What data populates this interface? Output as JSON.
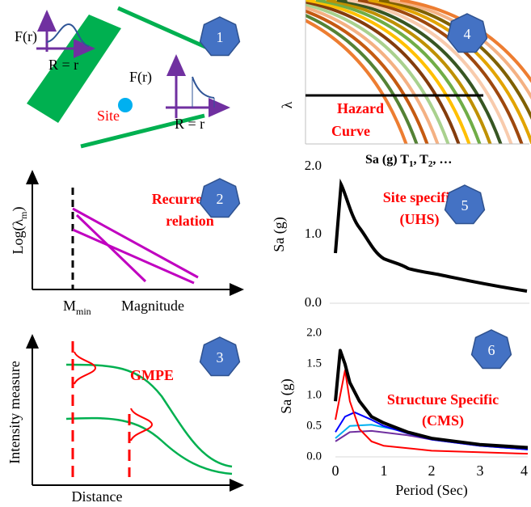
{
  "panel1": {
    "badge": "1",
    "density_label_left": "F(r)",
    "distance_label_left": "R = r",
    "density_label_right": "F(r)",
    "distance_label_right": "R = r",
    "site": "Site"
  },
  "panel2": {
    "badge": "2",
    "y_axis": {
      "text": "Log(λ",
      "sub": "m",
      "close": ")"
    },
    "min_magnitude": {
      "text": "M",
      "sub": "min"
    },
    "x_axis": "Magnitude",
    "annotation": [
      "Recurrence",
      "relation"
    ]
  },
  "panel3": {
    "badge": "3",
    "y_axis": "Intensity measure",
    "x_axis": "Distance",
    "annotation": "GMPE"
  },
  "panel4": {
    "badge": "4",
    "y_axis": "λ",
    "annotation": [
      "Hazard",
      "Curve"
    ],
    "x_axis": [
      "Sa (g) T",
      "1",
      ", T",
      "2",
      ", …"
    ]
  },
  "panel5": {
    "badge": "5",
    "y_axis": "Sa (g)",
    "yticks": [
      "2.0",
      "1.0",
      "0.0"
    ],
    "annotation": [
      "Site specific",
      "(UHS)"
    ]
  },
  "panel6": {
    "badge": "6",
    "y_axis": "Sa (g)",
    "yticks": [
      "2.0",
      "1.5",
      "1.0",
      "0.5",
      "0.0"
    ],
    "xticks": [
      "0",
      "1",
      "2",
      "3",
      "4"
    ],
    "x_axis": "Period (Sec)",
    "annotation": [
      "Structure Specific",
      "(CMS)"
    ]
  }
}
